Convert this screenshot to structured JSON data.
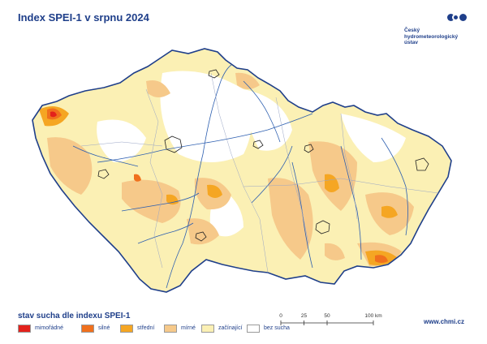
{
  "title": "Index SPEI-1 v srpnu 2024",
  "logo": {
    "icon": "chmi-logo-icon",
    "lines": [
      "Český",
      "hydrometeorologický",
      "ústav"
    ]
  },
  "legend": {
    "title": "stav sucha dle indexu SPEI-1",
    "items": [
      {
        "label": "mimořádné",
        "color": "#e3221c"
      },
      {
        "label": "silné",
        "color": "#f0701d"
      },
      {
        "label": "střední",
        "color": "#f5a623"
      },
      {
        "label": "mírné",
        "color": "#f6c98a"
      },
      {
        "label": "začínající",
        "color": "#fbf0b4"
      },
      {
        "label": "bez sucha",
        "color": "#ffffff"
      }
    ]
  },
  "scale": {
    "ticks": [
      "0",
      "25",
      "50",
      "100 km"
    ],
    "tick_km": [
      0,
      25,
      50,
      100
    ]
  },
  "website": "www.chmi.cz",
  "colors": {
    "border": "#1f3f8a",
    "rivers": "#2d5fb0",
    "cities": "#222222"
  }
}
